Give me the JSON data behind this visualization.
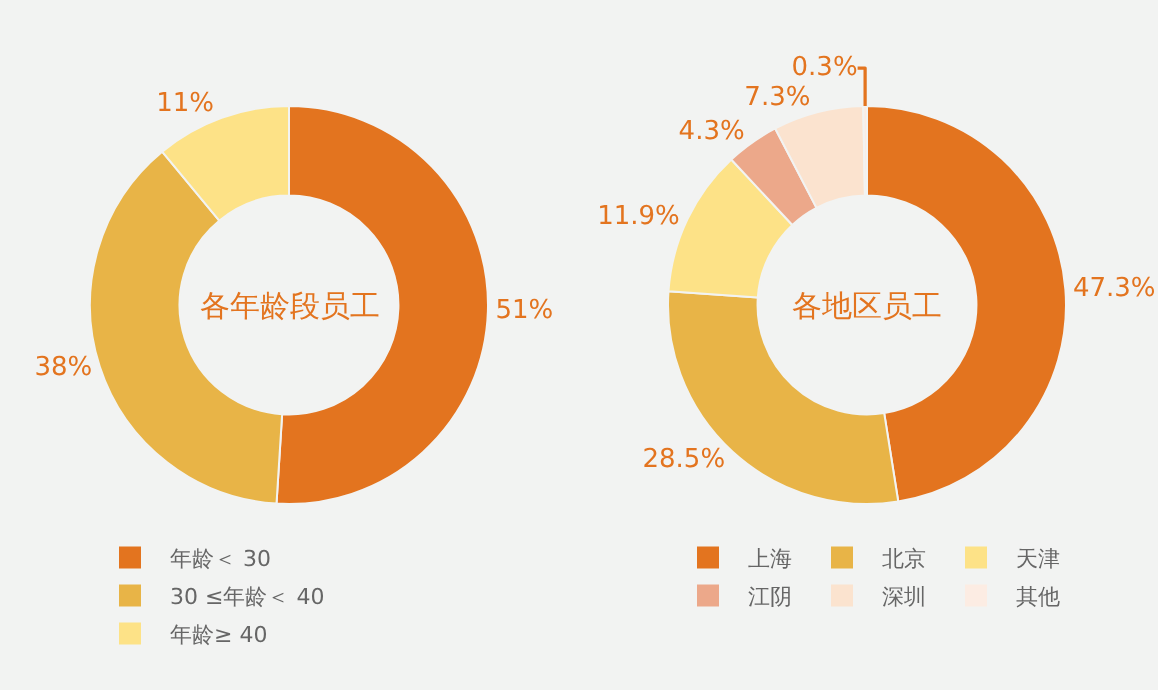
{
  "chart_data": [
    {
      "type": "donut",
      "title": "各年龄段员工",
      "categories": [
        "年龄＜ 30",
        "30 ≤年龄＜ 40",
        "年龄≥ 40"
      ],
      "values": [
        51,
        38,
        11
      ],
      "value_labels": [
        "51%",
        "38%",
        "11%"
      ],
      "colors": [
        "#e3741f",
        "#e8b447",
        "#fde287"
      ],
      "legend": "bottom"
    },
    {
      "type": "donut",
      "title": "各地区员工",
      "categories": [
        "上海",
        "北京",
        "天津",
        "江阴",
        "深圳",
        "其他"
      ],
      "values": [
        47.3,
        28.5,
        11.9,
        4.3,
        7.3,
        0.3
      ],
      "value_labels": [
        "47.3%",
        "28.5%",
        "11.9%",
        "4.3%",
        "7.3%",
        "0.3%"
      ],
      "colors": [
        "#e3741f",
        "#e8b447",
        "#fde287",
        "#eca88a",
        "#fbe3cf",
        "#fcece3"
      ],
      "legend": "bottom"
    }
  ]
}
